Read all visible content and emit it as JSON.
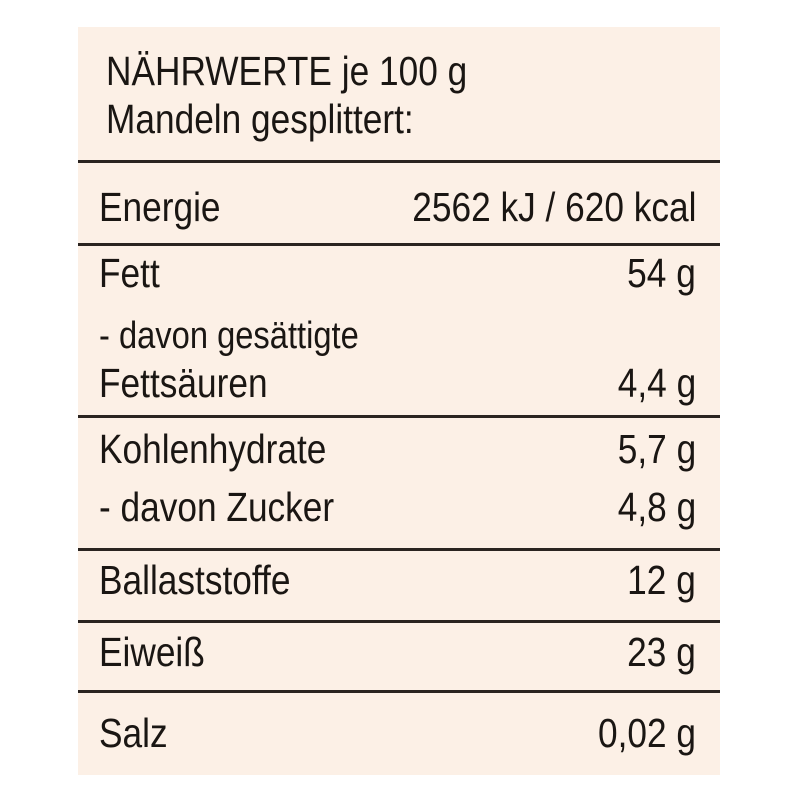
{
  "header": {
    "line1": "NÄHRWERTE je 100 g",
    "line2": "Mandeln gesplittert:"
  },
  "rows": {
    "energie": {
      "label": "Energie",
      "value": "2562 kJ / 620 kcal"
    },
    "fett": {
      "label": "Fett",
      "value": "54 g"
    },
    "gesaettigte": {
      "label_line1": "- davon gesättigte",
      "label_line2": "Fettsäuren",
      "value": "4,4 g"
    },
    "kohlenhydrate": {
      "label": "Kohlenhydrate",
      "value": "5,7 g"
    },
    "zucker": {
      "label": "- davon Zucker",
      "value": "4,8 g"
    },
    "ballaststoffe": {
      "label": "Ballaststoffe",
      "value": "12 g"
    },
    "eiweiss": {
      "label": "Eiweiß",
      "value": "23 g"
    },
    "salz": {
      "label": "Salz",
      "value": "0,02 g"
    }
  }
}
